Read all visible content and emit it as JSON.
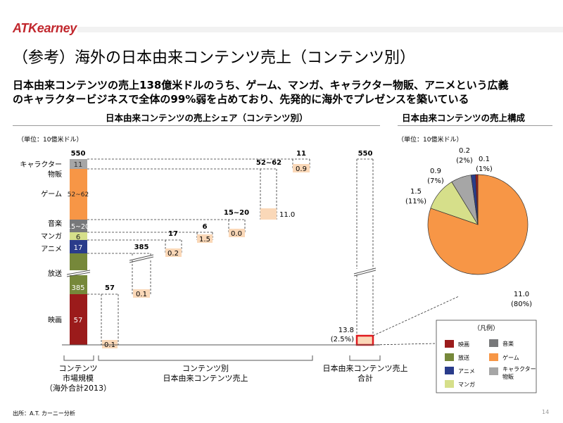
{
  "header": {
    "logo": "ATKearney",
    "title": "（参考）海外の日本由来コンテンツ売上（コンテンツ別）",
    "subtitle_line1": "日本由来コンテンツの売上138億米ドルのうち、ゲーム、マンガ、キャラクター物販、アニメという広義",
    "subtitle_line2": "のキャラクタービジネスで全体の99%弱を占めており、先発的に海外でプレゼンスを築いている"
  },
  "colors": {
    "film": "#9b1b1b",
    "broadcast": "#76883a",
    "anime": "#2a3c8b",
    "manga": "#d6df8a",
    "music": "#77787a",
    "game": "#f79646",
    "character": "#a6a6a6",
    "light_orange": "#fad8b8",
    "highlight_red": "#e0191e"
  },
  "left_chart": {
    "title": "日本由来コンテンツの売上シェア（コンテンツ別）",
    "unit": "（単位：10億米ドル）",
    "total_label": "550",
    "seg_labels": [
      {
        "text": "キャラクター"
      },
      {
        "text": "物販"
      },
      {
        "text": "ゲーム"
      },
      {
        "text": "音楽"
      },
      {
        "text": "マンガ"
      },
      {
        "text": "アニメ"
      },
      {
        "text": "放送"
      },
      {
        "text": "映画"
      }
    ],
    "bar_values": [
      "11",
      "52~62",
      "15~20",
      "6",
      "17",
      "385",
      "57"
    ],
    "column_tops": [
      "57",
      "385",
      "17",
      "6",
      "15~20",
      "52~62",
      "11",
      "550"
    ],
    "japan_values": [
      "0.1",
      "0.1",
      "0.2",
      "1.5",
      "0.0",
      "11.0",
      "0.9"
    ],
    "japan_total_value": "13.8",
    "japan_total_pct": "(2.5%)",
    "x_groups": [
      {
        "line1": "コンテンツ",
        "line2": "市場規模",
        "line3": "（海外合計2013）"
      },
      {
        "line1": "コンテンツ別",
        "line2": "日本由来コンテンツ売上"
      },
      {
        "line1": "日本由来コンテンツ売上",
        "line2": "合計"
      }
    ]
  },
  "right_chart": {
    "title": "日本由来コンテンツの売上構成",
    "unit": "（単位：10億米ドル）",
    "legend_title": "（凡例）",
    "legend": [
      {
        "label": "映画",
        "color": "#9b1b1b"
      },
      {
        "label": "音楽",
        "color": "#77787a"
      },
      {
        "label": "放送",
        "color": "#76883a"
      },
      {
        "label": "ゲーム",
        "color": "#f79646"
      },
      {
        "label": "アニメ",
        "color": "#2a3c8b"
      },
      {
        "label": "キャラクター",
        "label2": "物販",
        "color": "#a6a6a6"
      },
      {
        "label": "マンガ",
        "color": "#d6df8a"
      }
    ],
    "slice_labels": [
      {
        "v": "11.0",
        "p": "(80%)"
      },
      {
        "v": "1.5",
        "p": "(11%)"
      },
      {
        "v": "0.9",
        "p": "(7%)"
      },
      {
        "v": "0.2",
        "p": "(2%)"
      },
      {
        "v": "0.1",
        "p": "(1%)"
      }
    ]
  },
  "chart_data": [
    {
      "type": "bar",
      "title": "日本由来コンテンツの売上シェア（コンテンツ別）",
      "unit": "10億米ドル",
      "categories": [
        "映画",
        "放送",
        "アニメ",
        "マンガ",
        "音楽",
        "ゲーム",
        "キャラクター物販"
      ],
      "series": [
        {
          "name": "コンテンツ市場規模（海外合計2013）",
          "values": [
            57,
            385,
            17,
            6,
            "15~20",
            "52~62",
            11
          ],
          "total": 550
        },
        {
          "name": "日本由来コンテンツ売上",
          "values": [
            0.1,
            0.1,
            0.2,
            1.5,
            0.0,
            11.0,
            0.9
          ],
          "total": 13.8,
          "total_share": "2.5%"
        }
      ]
    },
    {
      "type": "pie",
      "title": "日本由来コンテンツの売上構成",
      "unit": "10億米ドル",
      "slices": [
        {
          "label": "ゲーム",
          "value": 11.0,
          "pct": 80
        },
        {
          "label": "マンガ",
          "value": 1.5,
          "pct": 11
        },
        {
          "label": "キャラクター物販",
          "value": 0.9,
          "pct": 7
        },
        {
          "label": "アニメ",
          "value": 0.2,
          "pct": 2
        },
        {
          "label": "映画",
          "value": 0.1,
          "pct": 1
        }
      ]
    }
  ],
  "footer": {
    "source": "出所：A.T. カーニー分析",
    "page": "14"
  }
}
